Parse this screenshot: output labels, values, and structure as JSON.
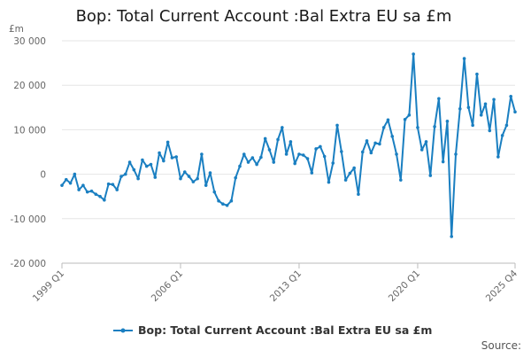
{
  "chart_data": {
    "type": "line",
    "title": "Bop: Total Current Account :Bal Extra EU sa £m",
    "unit_label": "£m",
    "ylim": [
      -20000,
      30000
    ],
    "yticks": [
      30000,
      20000,
      10000,
      0,
      -10000,
      -20000
    ],
    "ytick_labels": [
      "30 000",
      "20 000",
      "10 000",
      "0",
      "-10 000",
      "-20 000"
    ],
    "xtick_labels": [
      {
        "label": "1999 Q1",
        "index": 0
      },
      {
        "label": "2006 Q1",
        "index": 28
      },
      {
        "label": "2013 Q1",
        "index": 56
      },
      {
        "label": "2020 Q1",
        "index": 84
      },
      {
        "label": "2025 Q4",
        "index": 107
      }
    ],
    "grid": true,
    "legend_position": "bottom",
    "series": [
      {
        "name": "Bop: Total Current Account :Bal Extra EU sa £m",
        "color": "#1a7fc1",
        "values": [
          -2500,
          -1200,
          -2000,
          0,
          -3500,
          -2500,
          -4000,
          -3800,
          -4500,
          -5000,
          -5800,
          -2200,
          -2300,
          -3500,
          -500,
          0,
          2700,
          1000,
          -1000,
          3200,
          1800,
          2200,
          -700,
          4800,
          3000,
          7200,
          3700,
          3900,
          -1000,
          500,
          -500,
          -1700,
          -1000,
          4500,
          -2500,
          300,
          -4000,
          -6000,
          -6700,
          -7000,
          -6000,
          -800,
          1800,
          4500,
          2700,
          3700,
          2200,
          3800,
          8000,
          5500,
          2700,
          7800,
          10500,
          4500,
          7300,
          2400,
          4500,
          4300,
          3500,
          300,
          5700,
          6200,
          4000,
          -1800,
          2500,
          11000,
          5100,
          -1300,
          200,
          1400,
          -4500,
          5000,
          7500,
          4800,
          7000,
          6800,
          10500,
          12200,
          8500,
          4500,
          -1300,
          12300,
          13300,
          27000,
          10500,
          5500,
          7300,
          -300,
          10700,
          17000,
          2800,
          11900,
          -14000,
          4500,
          14700,
          26000,
          15000,
          11000,
          22500,
          13300,
          15800,
          9800,
          16800,
          3900,
          8700,
          11000,
          17500,
          14000
        ]
      }
    ]
  },
  "source_label": "Source:"
}
